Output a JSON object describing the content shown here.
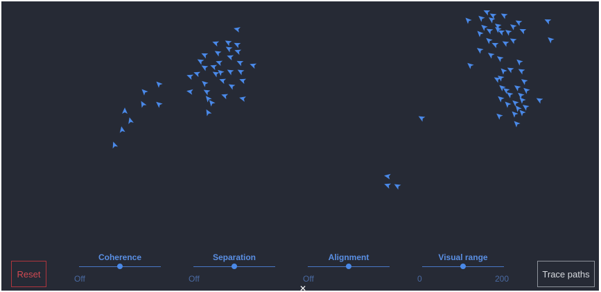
{
  "controls": {
    "reset_label": "Reset",
    "trace_label": "Trace paths",
    "sliders": [
      {
        "key": "coherence",
        "label": "Coherence",
        "min_label": "Off",
        "max_label": "",
        "value": 0.5
      },
      {
        "key": "separation",
        "label": "Separation",
        "min_label": "Off",
        "max_label": "",
        "value": 0.5
      },
      {
        "key": "alignment",
        "label": "Alignment",
        "min_label": "Off",
        "max_label": "",
        "value": 0.5
      },
      {
        "key": "visual-range",
        "label": "Visual range",
        "min_label": "0",
        "max_label": "200",
        "value": 0.5
      }
    ]
  },
  "close_glyph": "✕",
  "colors": {
    "background": "#262a35",
    "boid": "#4a89e8",
    "reset": "#d04a52",
    "slider_label": "#5a8fe3"
  }
}
